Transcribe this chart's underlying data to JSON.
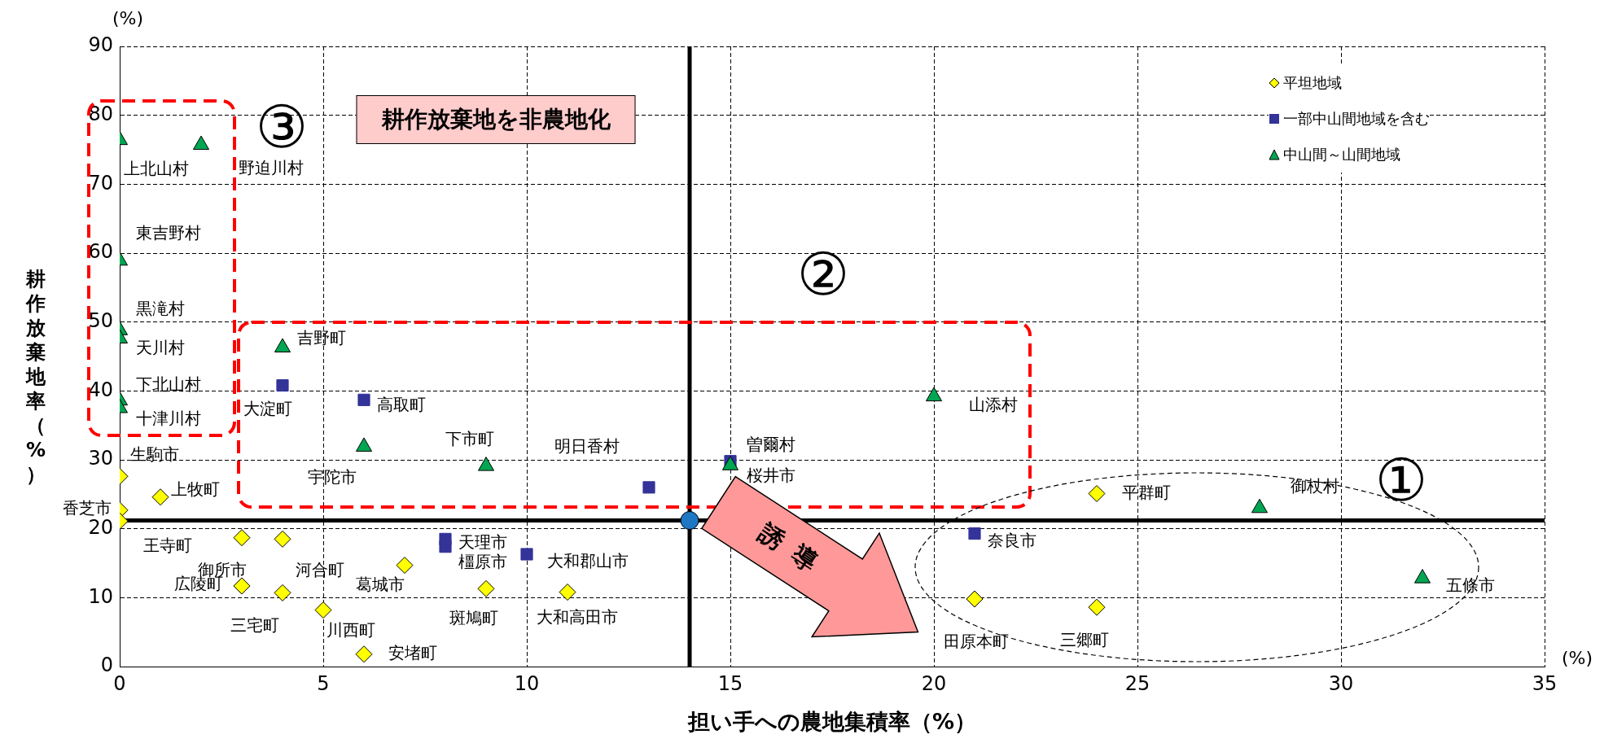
{
  "chart_data": {
    "type": "scatter",
    "xlabel": "担い手への農地集積率（%）",
    "ylabel": "耕作放棄地率（%）",
    "xlim": [
      0,
      35
    ],
    "xticks": [
      0,
      5,
      10,
      15,
      20,
      25,
      30,
      35
    ],
    "ylim": [
      0,
      90
    ],
    "yticks": [
      0,
      10,
      20,
      30,
      40,
      50,
      60,
      70,
      80,
      90
    ],
    "grid": true,
    "legend": "top right",
    "series": [
      {
        "name": "平坦地域",
        "color": "#ffff00",
        "marker": "diamond",
        "x": [
          0,
          1,
          0,
          0,
          3,
          4,
          7,
          3,
          4,
          5,
          6,
          9,
          11,
          24,
          21,
          24
        ],
        "values": [
          27.6,
          24.6,
          22.7,
          21.1,
          18.7,
          18.5,
          14.7,
          11.7,
          10.7,
          8.2,
          1.8,
          11.3,
          10.8,
          25.1,
          9.8,
          8.6
        ]
      },
      {
        "name": "一部中山間地域を含む",
        "color": "#333399",
        "marker": "square",
        "x": [
          4,
          6,
          13,
          8,
          8,
          10,
          15,
          21
        ],
        "values": [
          40.8,
          38.7,
          26,
          18.5,
          17.4,
          16.3,
          29.8,
          19.3
        ]
      },
      {
        "name": "中山間～山間地域",
        "color": "#00a651",
        "marker": "triangle",
        "x": [
          0,
          2,
          0,
          0,
          0,
          0,
          0,
          4,
          6,
          9,
          15,
          20,
          28,
          32
        ],
        "values": [
          76.4,
          75.7,
          58.9,
          48.8,
          47.6,
          38.6,
          37.5,
          46.3,
          31.9,
          29.1,
          29.2,
          39.2,
          23,
          12.8
        ]
      },
      {
        "color": "#1f77c4",
        "marker": "circle",
        "x": [
          14
        ],
        "values": [
          21.2
        ]
      }
    ],
    "ref_lines": [
      {
        "axis": "x",
        "value": 14,
        "color": "#000000"
      },
      {
        "axis": "y",
        "value": 21.2,
        "color": "#000000"
      }
    ],
    "annotations": [
      "(%)",
      "(%)",
      "①",
      "②",
      "③",
      "耕作放棄地を非農地化",
      "誘導",
      {
        "text": "生駒市",
        "x": 0,
        "y": 27.6
      },
      {
        "text": "上牧町",
        "x": 1,
        "y": 24.6
      },
      {
        "text": "香芝市",
        "x": 0,
        "y": 22.7
      },
      {
        "text": "王寺町",
        "x": 0,
        "y": 21.1
      },
      {
        "text": "御所市",
        "x": 3,
        "y": 18.7
      },
      {
        "text": "河合町",
        "x": 4,
        "y": 18.5
      },
      {
        "text": "葛城市",
        "x": 7,
        "y": 14.7
      },
      {
        "text": "広陵町",
        "x": 3,
        "y": 11.7
      },
      {
        "text": "三宅町",
        "x": 4,
        "y": 10.7
      },
      {
        "text": "川西町",
        "x": 5,
        "y": 8.2
      },
      {
        "text": "安堵町",
        "x": 6,
        "y": 1.8
      },
      {
        "text": "斑鳩町",
        "x": 9,
        "y": 11.3
      },
      {
        "text": "大和高田市",
        "x": 11,
        "y": 10.8
      },
      {
        "text": "平群町",
        "x": 24,
        "y": 25.1
      },
      {
        "text": "田原本町",
        "x": 21,
        "y": 9.8
      },
      {
        "text": "三郷町",
        "x": 24,
        "y": 8.6
      },
      {
        "text": "大淀町",
        "x": 4,
        "y": 40.8
      },
      {
        "text": "高取町",
        "x": 6,
        "y": 38.7
      },
      {
        "text": "明日香村",
        "x": 13,
        "y": 26
      },
      {
        "text": "天理市",
        "x": 8,
        "y": 18.5
      },
      {
        "text": "橿原市",
        "x": 8,
        "y": 17.4
      },
      {
        "text": "大和郡山市",
        "x": 10,
        "y": 16.3
      },
      {
        "text": "桜井市",
        "x": 15,
        "y": 29.8
      },
      {
        "text": "奈良市",
        "x": 21,
        "y": 19.3
      },
      {
        "text": "上北山村",
        "x": 0,
        "y": 76.4
      },
      {
        "text": "野迫川村",
        "x": 2,
        "y": 75.7
      },
      {
        "text": "東吉野村",
        "x": 0,
        "y": 58.9
      },
      {
        "text": "黒滝村",
        "x": 0,
        "y": 48.8
      },
      {
        "text": "天川村",
        "x": 0,
        "y": 47.6
      },
      {
        "text": "下北山村",
        "x": 0,
        "y": 38.6
      },
      {
        "text": "十津川村",
        "x": 0,
        "y": 37.5
      },
      {
        "text": "吉野町",
        "x": 4,
        "y": 46.3
      },
      {
        "text": "宇陀市",
        "x": 6,
        "y": 31.9
      },
      {
        "text": "下市町",
        "x": 9,
        "y": 29.1
      },
      {
        "text": "曽爾村",
        "x": 15,
        "y": 29.2
      },
      {
        "text": "山添村",
        "x": 20,
        "y": 39.2
      },
      {
        "text": "御杖村",
        "x": 28,
        "y": 23
      },
      {
        "text": "五條市",
        "x": 32,
        "y": 12.8
      }
    ]
  }
}
